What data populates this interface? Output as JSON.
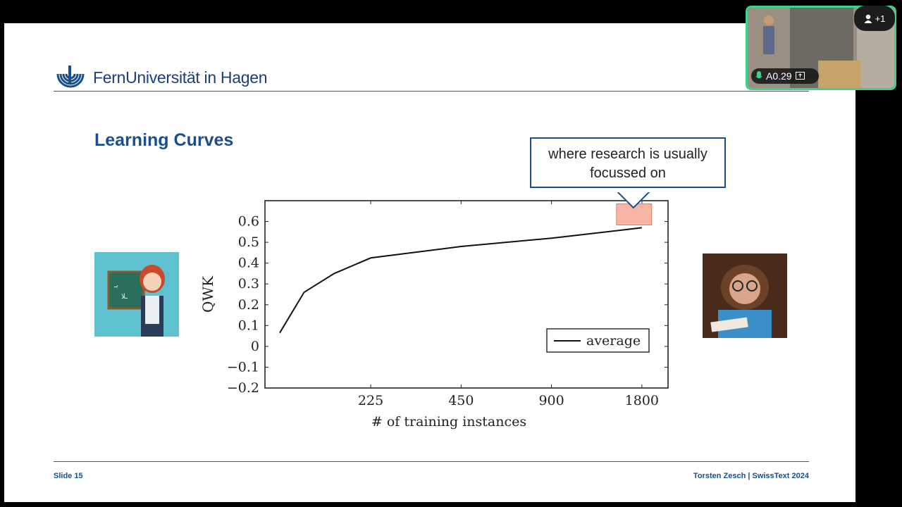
{
  "header": {
    "brand": "FernUniversität in Hagen"
  },
  "slide": {
    "title": "Learning Curves",
    "callout": "where research is usually focussed on"
  },
  "footer": {
    "slide_number": "Slide 15",
    "author_event": "Torsten Zesch  |  SwissText 2024"
  },
  "video": {
    "participant_label": "A0.29",
    "participant_count": "+1"
  },
  "colors": {
    "brand": "#1a4e8c",
    "highlight_box": "#f9b5a3",
    "camera_border": "#3ad38a"
  },
  "chart_data": {
    "type": "line",
    "x": [
      112,
      135,
      170,
      225,
      450,
      900,
      1800
    ],
    "ylim": [
      -0.2,
      0.7
    ],
    "ylabel": "QWK",
    "xlabel": "# of training instances",
    "xticks": [
      "225",
      "450",
      "900",
      "1800"
    ],
    "yticks": [
      "0.6",
      "0.5",
      "0.4",
      "0.3",
      "0.2",
      "0.1",
      "0",
      "−0.1",
      "−0.2"
    ],
    "series": [
      {
        "name": "average",
        "values": [
          0.065,
          0.26,
          0.35,
          0.425,
          0.48,
          0.52,
          0.57
        ]
      }
    ],
    "legend_position": "bottom-right"
  }
}
